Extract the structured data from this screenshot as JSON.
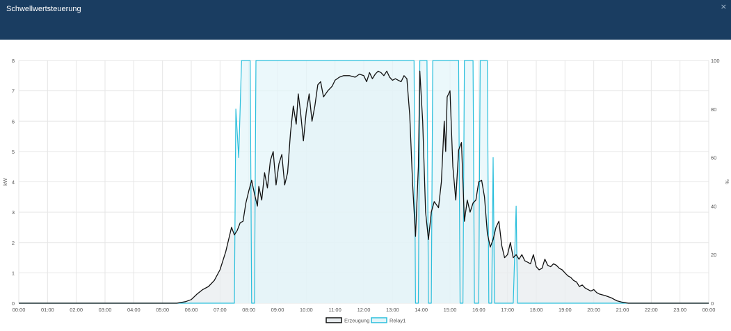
{
  "window": {
    "title": "Schwellwertsteuerung",
    "close_label": "×"
  },
  "colors": {
    "header_bg": "#1a3d61",
    "erzeugung_line": "#111111",
    "erzeugung_fill": "#e8ecef",
    "relay_line": "#2bbfdc",
    "relay_fill": "#e3f5f9",
    "grid": "#e6e6e6"
  },
  "chart_data": {
    "type": "line",
    "xlabel": "",
    "ylabel": "kW",
    "y2label": "%",
    "ylim": [
      0,
      8
    ],
    "y2lim": [
      0,
      100
    ],
    "yticks": [
      0,
      1,
      2,
      3,
      4,
      5,
      6,
      7,
      8
    ],
    "y2ticks": [
      0,
      20,
      40,
      60,
      80,
      100
    ],
    "xlim": [
      0,
      24
    ],
    "xticks": [
      "00:00",
      "01:00",
      "02:00",
      "03:00",
      "04:00",
      "05:00",
      "06:00",
      "07:00",
      "08:00",
      "09:00",
      "10:00",
      "11:00",
      "12:00",
      "13:00",
      "14:00",
      "15:00",
      "16:00",
      "17:00",
      "18:00",
      "19:00",
      "20:00",
      "21:00",
      "22:00",
      "23:00",
      "00:00"
    ],
    "grid": true,
    "legend_position": "bottom-center",
    "series": [
      {
        "name": "Erzeugung",
        "axis": "left",
        "color": "#111111",
        "fill": "#e8ecef",
        "points": [
          [
            0,
            0
          ],
          [
            5.5,
            0
          ],
          [
            5.8,
            0.05
          ],
          [
            6.0,
            0.12
          ],
          [
            6.2,
            0.3
          ],
          [
            6.4,
            0.45
          ],
          [
            6.6,
            0.55
          ],
          [
            6.8,
            0.75
          ],
          [
            7.0,
            1.1
          ],
          [
            7.2,
            1.7
          ],
          [
            7.4,
            2.5
          ],
          [
            7.5,
            2.25
          ],
          [
            7.6,
            2.4
          ],
          [
            7.7,
            2.65
          ],
          [
            7.8,
            2.7
          ],
          [
            7.9,
            3.3
          ],
          [
            8.0,
            3.7
          ],
          [
            8.1,
            4.05
          ],
          [
            8.2,
            3.6
          ],
          [
            8.3,
            3.2
          ],
          [
            8.35,
            3.85
          ],
          [
            8.45,
            3.4
          ],
          [
            8.55,
            4.3
          ],
          [
            8.65,
            3.8
          ],
          [
            8.75,
            4.7
          ],
          [
            8.85,
            5.0
          ],
          [
            8.95,
            3.9
          ],
          [
            9.05,
            4.6
          ],
          [
            9.15,
            4.9
          ],
          [
            9.25,
            3.9
          ],
          [
            9.35,
            4.3
          ],
          [
            9.45,
            5.6
          ],
          [
            9.55,
            6.5
          ],
          [
            9.65,
            5.9
          ],
          [
            9.72,
            6.9
          ],
          [
            9.8,
            6.3
          ],
          [
            9.9,
            5.35
          ],
          [
            10.0,
            6.3
          ],
          [
            10.1,
            6.9
          ],
          [
            10.2,
            6.0
          ],
          [
            10.3,
            6.5
          ],
          [
            10.4,
            7.2
          ],
          [
            10.5,
            7.3
          ],
          [
            10.6,
            6.8
          ],
          [
            10.75,
            7.0
          ],
          [
            10.9,
            7.15
          ],
          [
            11.0,
            7.35
          ],
          [
            11.15,
            7.45
          ],
          [
            11.3,
            7.5
          ],
          [
            11.5,
            7.5
          ],
          [
            11.7,
            7.45
          ],
          [
            11.85,
            7.55
          ],
          [
            12.0,
            7.5
          ],
          [
            12.1,
            7.3
          ],
          [
            12.2,
            7.6
          ],
          [
            12.3,
            7.4
          ],
          [
            12.4,
            7.55
          ],
          [
            12.5,
            7.65
          ],
          [
            12.6,
            7.6
          ],
          [
            12.7,
            7.5
          ],
          [
            12.8,
            7.65
          ],
          [
            12.9,
            7.45
          ],
          [
            13.0,
            7.35
          ],
          [
            13.1,
            7.4
          ],
          [
            13.2,
            7.35
          ],
          [
            13.3,
            7.3
          ],
          [
            13.4,
            7.5
          ],
          [
            13.5,
            7.4
          ],
          [
            13.6,
            6.2
          ],
          [
            13.7,
            3.9
          ],
          [
            13.8,
            2.2
          ],
          [
            13.9,
            4.5
          ],
          [
            13.95,
            7.65
          ],
          [
            14.05,
            6.0
          ],
          [
            14.15,
            3.0
          ],
          [
            14.25,
            2.1
          ],
          [
            14.35,
            3.0
          ],
          [
            14.45,
            3.35
          ],
          [
            14.6,
            3.15
          ],
          [
            14.7,
            4.0
          ],
          [
            14.8,
            6.0
          ],
          [
            14.85,
            5.0
          ],
          [
            14.9,
            6.8
          ],
          [
            15.0,
            7.0
          ],
          [
            15.1,
            4.5
          ],
          [
            15.2,
            3.4
          ],
          [
            15.3,
            5.05
          ],
          [
            15.4,
            5.3
          ],
          [
            15.5,
            2.7
          ],
          [
            15.6,
            3.4
          ],
          [
            15.7,
            3.0
          ],
          [
            15.8,
            3.3
          ],
          [
            15.9,
            3.4
          ],
          [
            16.0,
            4.0
          ],
          [
            16.1,
            4.05
          ],
          [
            16.2,
            3.5
          ],
          [
            16.3,
            2.3
          ],
          [
            16.4,
            1.85
          ],
          [
            16.5,
            2.1
          ],
          [
            16.6,
            2.5
          ],
          [
            16.7,
            2.7
          ],
          [
            16.8,
            1.9
          ],
          [
            16.9,
            1.5
          ],
          [
            17.0,
            1.6
          ],
          [
            17.1,
            2.0
          ],
          [
            17.2,
            1.5
          ],
          [
            17.3,
            1.6
          ],
          [
            17.4,
            1.45
          ],
          [
            17.5,
            1.6
          ],
          [
            17.6,
            1.4
          ],
          [
            17.7,
            1.35
          ],
          [
            17.8,
            1.3
          ],
          [
            17.9,
            1.6
          ],
          [
            18.0,
            1.2
          ],
          [
            18.1,
            1.1
          ],
          [
            18.2,
            1.15
          ],
          [
            18.3,
            1.45
          ],
          [
            18.4,
            1.25
          ],
          [
            18.5,
            1.2
          ],
          [
            18.6,
            1.3
          ],
          [
            18.7,
            1.25
          ],
          [
            18.8,
            1.15
          ],
          [
            18.9,
            1.1
          ],
          [
            19.0,
            1.0
          ],
          [
            19.1,
            0.9
          ],
          [
            19.2,
            0.85
          ],
          [
            19.3,
            0.75
          ],
          [
            19.4,
            0.7
          ],
          [
            19.5,
            0.55
          ],
          [
            19.6,
            0.6
          ],
          [
            19.7,
            0.5
          ],
          [
            19.8,
            0.45
          ],
          [
            19.9,
            0.4
          ],
          [
            20.0,
            0.45
          ],
          [
            20.1,
            0.35
          ],
          [
            20.2,
            0.3
          ],
          [
            20.4,
            0.25
          ],
          [
            20.6,
            0.18
          ],
          [
            20.8,
            0.08
          ],
          [
            21.0,
            0.03
          ],
          [
            21.2,
            0.0
          ],
          [
            24,
            0
          ]
        ]
      },
      {
        "name": "Relay1",
        "axis": "right",
        "color": "#2bbfdc",
        "fill": "#e3f5f9",
        "points": [
          [
            0,
            0
          ],
          [
            7.45,
            0
          ],
          [
            7.5,
            0
          ],
          [
            7.55,
            80
          ],
          [
            7.65,
            60
          ],
          [
            7.75,
            100
          ],
          [
            8.05,
            100
          ],
          [
            8.1,
            0
          ],
          [
            8.2,
            0
          ],
          [
            8.25,
            100
          ],
          [
            13.5,
            100
          ],
          [
            13.75,
            100
          ],
          [
            13.8,
            0
          ],
          [
            13.9,
            0
          ],
          [
            13.95,
            100
          ],
          [
            14.2,
            100
          ],
          [
            14.25,
            0
          ],
          [
            14.35,
            0
          ],
          [
            14.4,
            100
          ],
          [
            15.3,
            100
          ],
          [
            15.35,
            0
          ],
          [
            15.45,
            0
          ],
          [
            15.5,
            100
          ],
          [
            15.8,
            100
          ],
          [
            15.85,
            0
          ],
          [
            16.0,
            0
          ],
          [
            16.05,
            100
          ],
          [
            16.3,
            100
          ],
          [
            16.35,
            0
          ],
          [
            16.45,
            0
          ],
          [
            16.5,
            60
          ],
          [
            16.55,
            0
          ],
          [
            17.2,
            0
          ],
          [
            17.3,
            40
          ],
          [
            17.35,
            0
          ],
          [
            24,
            0
          ]
        ]
      }
    ]
  }
}
